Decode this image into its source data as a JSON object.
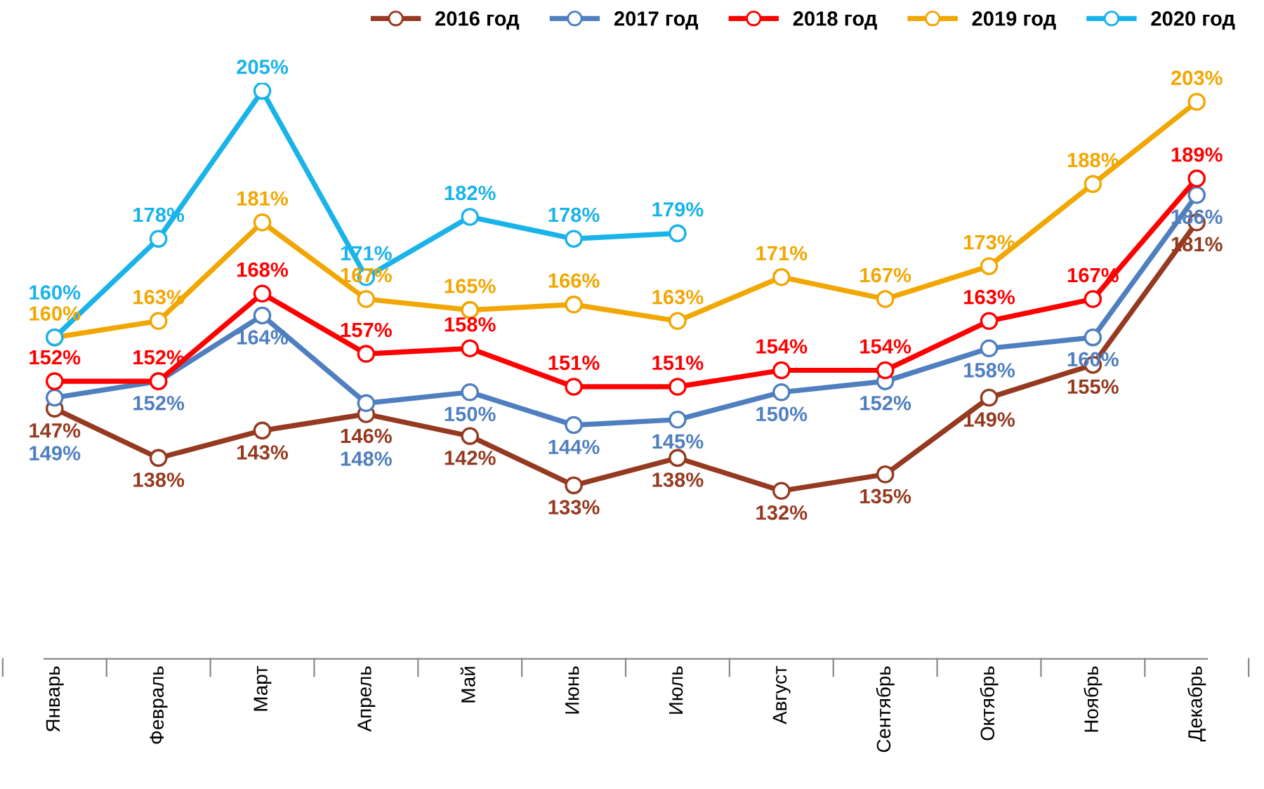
{
  "chart_data": {
    "type": "line",
    "categories": [
      "Январь",
      "Февраль",
      "Март",
      "Апрель",
      "Май",
      "Июнь",
      "Июль",
      "Август",
      "Сентябрь",
      "Октябрь",
      "Ноябрь",
      "Декабрь"
    ],
    "series": [
      {
        "name": "2016 год",
        "color": "#953a20",
        "values": [
          147,
          138,
          143,
          146,
          142,
          133,
          138,
          132,
          135,
          149,
          155,
          181
        ],
        "value_labels": [
          "147%",
          "138%",
          "143%",
          "146%",
          "142%",
          "133%",
          "138%",
          "132%",
          "135%",
          "149%",
          "155%",
          "181%"
        ]
      },
      {
        "name": "2017 год",
        "color": "#4f7fbf",
        "values": [
          149,
          152,
          164,
          148,
          150,
          144,
          145,
          150,
          152,
          158,
          160,
          186
        ],
        "value_labels": [
          "149%",
          "152%",
          "164%",
          "148%",
          "150%",
          "144%",
          "145%",
          "150%",
          "152%",
          "158%",
          "160%",
          "186%"
        ]
      },
      {
        "name": "2018 год",
        "color": "#ff0000",
        "values": [
          152,
          152,
          168,
          157,
          158,
          151,
          151,
          154,
          154,
          163,
          167,
          189
        ],
        "value_labels": [
          "152%",
          "152%",
          "168%",
          "157%",
          "158%",
          "151%",
          "151%",
          "154%",
          "154%",
          "163%",
          "167%",
          "189%"
        ]
      },
      {
        "name": "2019 год",
        "color": "#f2a600",
        "values": [
          160,
          163,
          181,
          167,
          165,
          166,
          163,
          171,
          167,
          173,
          188,
          203
        ],
        "value_labels": [
          "160%",
          "163%",
          "181%",
          "167%",
          "165%",
          "166%",
          "163%",
          "171%",
          "167%",
          "173%",
          "188%",
          "203%"
        ]
      },
      {
        "name": "2020 год",
        "color": "#19b3ea",
        "values": [
          160,
          178,
          205,
          171,
          182,
          178,
          179,
          null,
          null,
          null,
          null,
          null
        ],
        "value_labels": [
          "160%",
          "178%",
          "205%",
          "171%",
          "182%",
          "178%",
          "179%",
          null,
          null,
          null,
          null,
          null
        ]
      }
    ],
    "legend": "top right",
    "grid": false,
    "marker": "circle",
    "line_style": "solid",
    "tick_labels": "x"
  }
}
